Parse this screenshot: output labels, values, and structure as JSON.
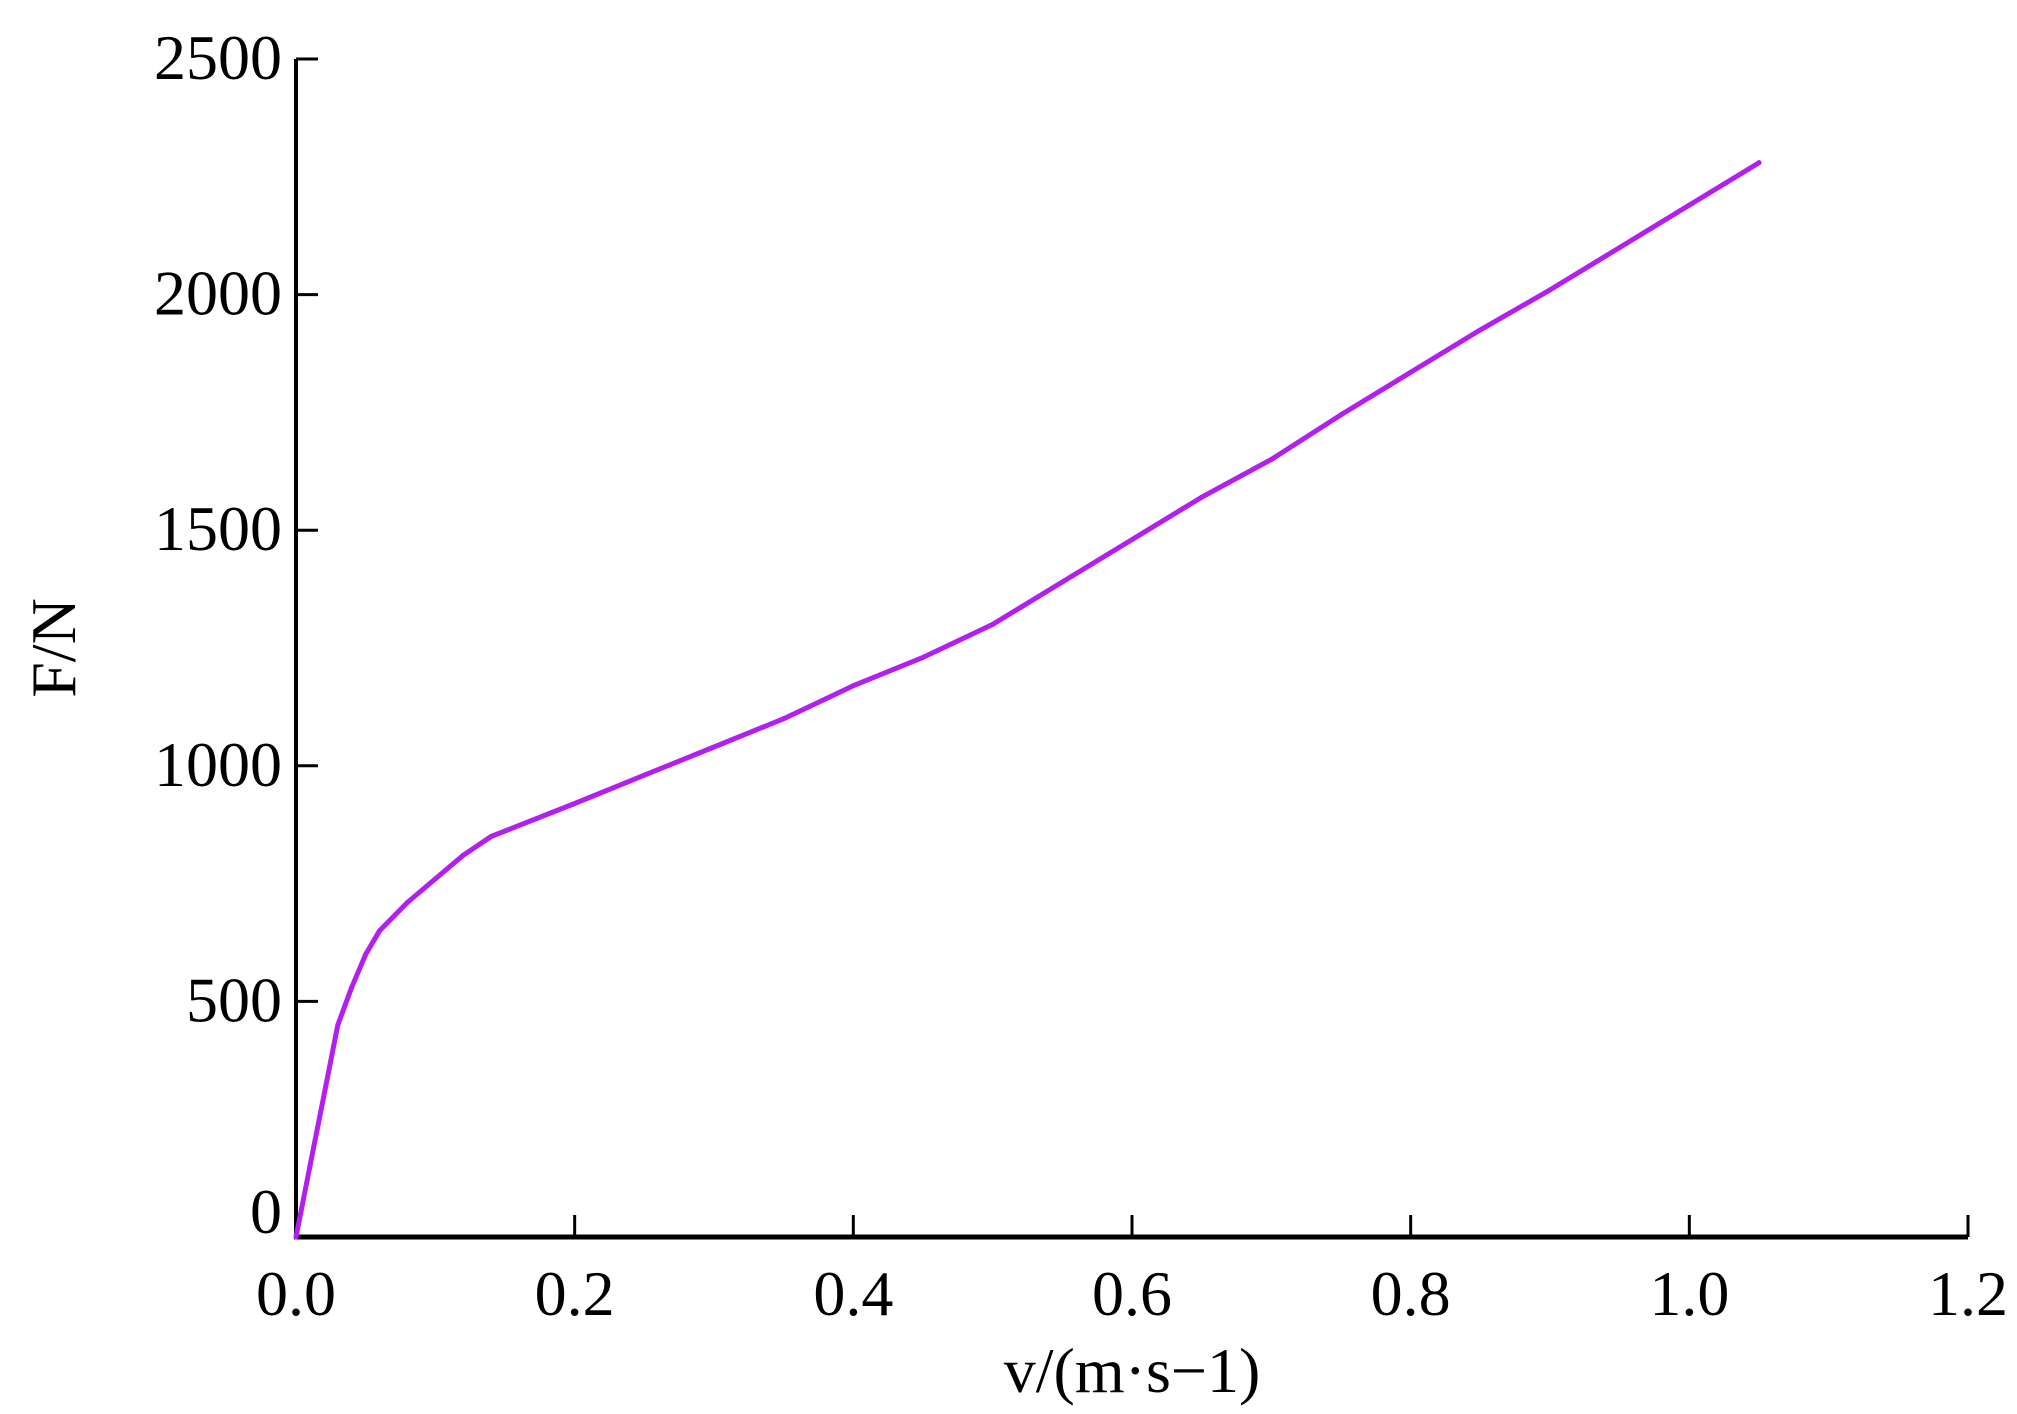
{
  "chart_data": {
    "type": "line",
    "title": "",
    "xlabel": "v/(m·s−1)",
    "xlabel_parts": {
      "var": "v",
      "unit": "/(m·s",
      "sup": "−1",
      "close": ")"
    },
    "ylabel": "F/N",
    "ylabel_parts": {
      "var": "F",
      "unit": "/N"
    },
    "xlim": [
      0,
      1.2
    ],
    "ylim": [
      0,
      2500
    ],
    "x_ticks": [
      "0.0",
      "0.2",
      "0.4",
      "0.6",
      "0.8",
      "1.0",
      "1.2"
    ],
    "y_ticks": [
      "0",
      "500",
      "1000",
      "1500",
      "2000",
      "2500"
    ],
    "grid": false,
    "legend": "none",
    "series": [
      {
        "color": "#b21ff0",
        "x": [
          0,
          0.01,
          0.02,
          0.03,
          0.04,
          0.05,
          0.06,
          0.08,
          0.1,
          0.12,
          0.14,
          0.2,
          0.25,
          0.3,
          0.35,
          0.4,
          0.45,
          0.5,
          0.55,
          0.6,
          0.65,
          0.7,
          0.75,
          0.8,
          0.85,
          0.9,
          0.95,
          1.0,
          1.05
        ],
        "y": [
          0,
          150,
          300,
          450,
          530,
          600,
          650,
          710,
          760,
          810,
          850,
          920,
          980,
          1040,
          1100,
          1170,
          1230,
          1300,
          1390,
          1480,
          1570,
          1650,
          1745,
          1835,
          1925,
          2010,
          2100,
          2190,
          2280
        ]
      }
    ]
  }
}
